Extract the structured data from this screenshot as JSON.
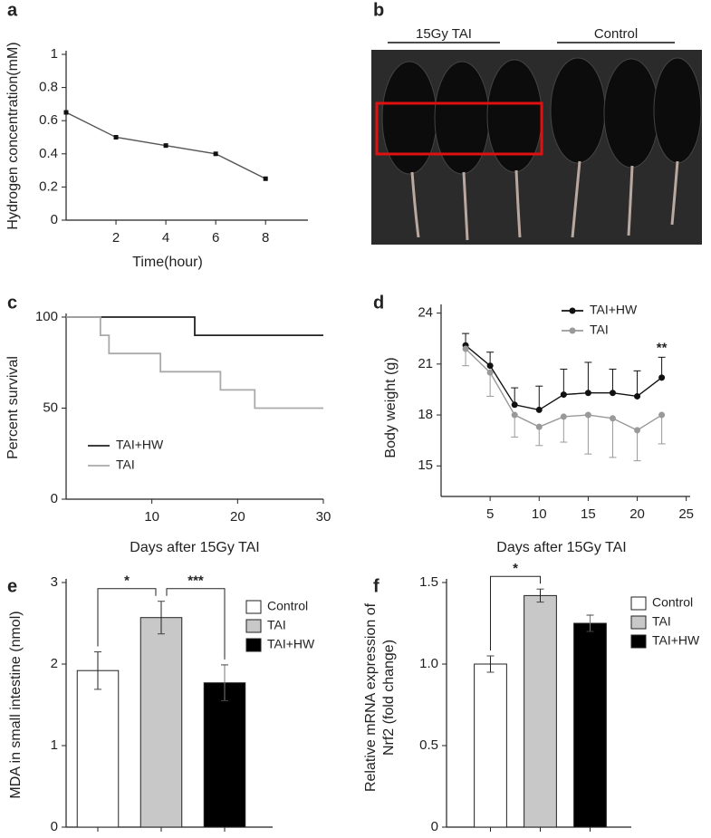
{
  "photo": {
    "panel": "b",
    "groups": [
      "15Gy TAI",
      "Control"
    ]
  },
  "chart_data": [
    {
      "panel": "a",
      "type": "line",
      "xlabel": "Time(hour)",
      "ylabel": "Hydrogen concentration(mM)",
      "x": [
        0,
        2,
        4,
        6,
        8
      ],
      "series": [
        {
          "color": "#555555",
          "values": [
            0.65,
            0.5,
            0.45,
            0.4,
            0.25
          ]
        }
      ],
      "xlim": [
        0,
        9.7
      ],
      "xticks": [
        2,
        4,
        6,
        8
      ],
      "ylim": [
        0,
        1
      ],
      "yticks": [
        0,
        0.2,
        0.4,
        0.6,
        0.8,
        1
      ]
    },
    {
      "panel": "c",
      "type": "step",
      "xlabel": "Days after 15Gy TAI",
      "ylabel": "Percent survival",
      "series": [
        {
          "name": "TAI+HW",
          "color": "#222222",
          "x": [
            0,
            15,
            30
          ],
          "values": [
            100,
            90,
            90
          ]
        },
        {
          "name": "TAI",
          "color": "#aaaaaa",
          "x": [
            0,
            4,
            5,
            11,
            18,
            22,
            30
          ],
          "values": [
            100,
            90,
            80,
            70,
            60,
            50,
            50
          ]
        }
      ],
      "xlim": [
        0,
        30
      ],
      "xticks": [
        10,
        20,
        30
      ],
      "ylim": [
        0,
        100
      ],
      "yticks": [
        0,
        50,
        100
      ],
      "legend": "left"
    },
    {
      "panel": "d",
      "type": "line",
      "xlabel": "Days after 15Gy TAI",
      "ylabel": "Body weight (g)",
      "x": [
        2.5,
        5,
        7.5,
        10,
        12.5,
        15,
        17.5,
        20,
        22.5
      ],
      "series": [
        {
          "name": "TAI+HW",
          "color": "#111111",
          "values": [
            22.1,
            20.9,
            18.6,
            18.3,
            19.2,
            19.3,
            19.3,
            19.1,
            20.2
          ],
          "errors": [
            0.7,
            0.8,
            1.0,
            1.4,
            1.5,
            1.8,
            1.4,
            1.5,
            1.2
          ],
          "error_side": "up"
        },
        {
          "name": "TAI",
          "color": "#999999",
          "values": [
            21.9,
            20.5,
            18.0,
            17.3,
            17.9,
            18.0,
            17.8,
            17.1,
            18.0
          ],
          "errors": [
            1.0,
            1.4,
            1.3,
            1.1,
            1.5,
            2.3,
            2.3,
            1.8,
            1.7
          ],
          "error_side": "down"
        }
      ],
      "annotation": "**",
      "xlim": [
        0,
        25.4
      ],
      "xticks": [
        5,
        10,
        15,
        20,
        25
      ],
      "ylim": [
        13.2,
        24.3
      ],
      "yticks": [
        15,
        18,
        21,
        24
      ],
      "legend": "top"
    },
    {
      "panel": "e",
      "type": "bar",
      "ylabel": "MDA in small intestine (nmol)",
      "categories": [
        "Control",
        "TAI",
        "TAI+HW"
      ],
      "values": [
        1.92,
        2.57,
        1.77
      ],
      "errors": [
        0.23,
        0.2,
        0.22
      ],
      "colors": [
        "#ffffff",
        "#c8c8c8",
        "#000000"
      ],
      "significance": [
        {
          "label": "*",
          "pair": [
            "Control",
            "TAI"
          ]
        },
        {
          "label": "***",
          "pair": [
            "TAI",
            "TAI+HW"
          ]
        }
      ],
      "ylim": [
        0,
        3
      ],
      "yticks": [
        0,
        1,
        2,
        3
      ],
      "legend": "right"
    },
    {
      "panel": "f",
      "type": "bar",
      "ylabel": [
        "Relative mRNA expression of",
        "Nrf2 (fold change)"
      ],
      "categories": [
        "Control",
        "TAI",
        "TAI+HW"
      ],
      "values": [
        1.0,
        1.42,
        1.25
      ],
      "errors": [
        0.05,
        0.04,
        0.05
      ],
      "colors": [
        "#ffffff",
        "#c8c8c8",
        "#000000"
      ],
      "significance": [
        {
          "label": "*",
          "pair": [
            "Control",
            "TAI"
          ]
        }
      ],
      "ylim": [
        0,
        1.5
      ],
      "yticks": [
        0,
        0.5,
        {
          "value": 1,
          "label": "1.0"
        },
        1.5
      ],
      "legend": "right"
    }
  ]
}
